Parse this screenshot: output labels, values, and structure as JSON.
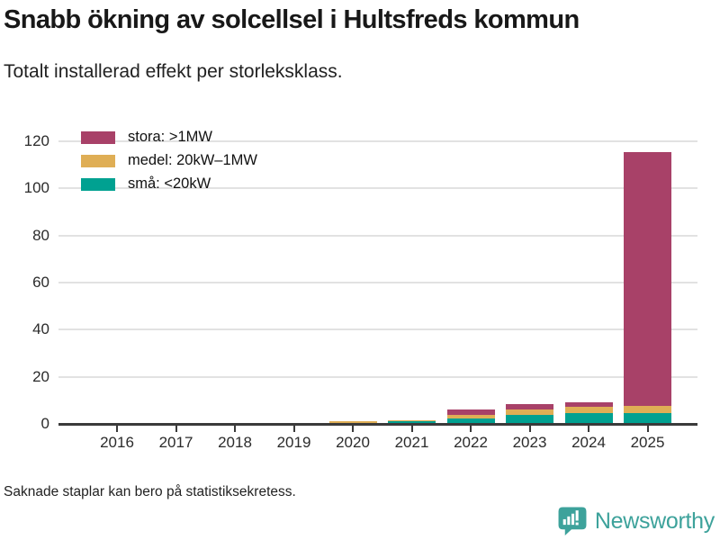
{
  "header": {
    "title": "Snabb ökning av solcellsel i Hultsfreds kommun",
    "subtitle": "Totalt installerad effekt per storleksklass."
  },
  "footer": {
    "note": "Saknade staplar kan bero på statistiksekretess.",
    "brand": "Newsworthy"
  },
  "colors": {
    "stora": "#a84168",
    "medel": "#dfae55",
    "sma": "#00a191",
    "brand_teal": "#3da29b",
    "grid": "#e2e2e2",
    "axis": "#3a3a3a"
  },
  "chart_data": {
    "type": "bar",
    "stacked": true,
    "title": "Snabb ökning av solcellsel i Hultsfreds kommun",
    "subtitle": "Totalt installerad effekt per storleksklass.",
    "categories": [
      "2016",
      "2017",
      "2018",
      "2019",
      "2020",
      "2021",
      "2022",
      "2023",
      "2024",
      "2025"
    ],
    "series": [
      {
        "name": "stora: >1MW",
        "color": "#a84168",
        "values": [
          0,
          0,
          0,
          0,
          0,
          0,
          2.3,
          2.3,
          1.9,
          107.8
        ]
      },
      {
        "name": "medel: 20kW–1MW",
        "color": "#dfae55",
        "values": [
          0,
          0,
          0,
          0,
          0.7,
          0.4,
          1.5,
          2.3,
          2.7,
          3.1
        ]
      },
      {
        "name": "små: <20kW",
        "color": "#00a191",
        "values": [
          0,
          0,
          0,
          0,
          0.4,
          1.1,
          2.3,
          3.8,
          4.6,
          4.6
        ]
      }
    ],
    "stack_order_bottom_to_top": [
      "små: <20kW",
      "medel: 20kW–1MW",
      "stora: >1MW"
    ],
    "totals": [
      0,
      0,
      0,
      0,
      1.1,
      1.5,
      6.1,
      8.4,
      9.2,
      115.5
    ],
    "xlabel": "",
    "ylabel": "",
    "yticks": [
      0,
      20,
      40,
      60,
      80,
      100,
      120
    ],
    "ylim": [
      0,
      120
    ],
    "grid": "horizontal",
    "legend_position": "top-left",
    "note": "Saknade staplar kan bero på statistiksekretess."
  }
}
